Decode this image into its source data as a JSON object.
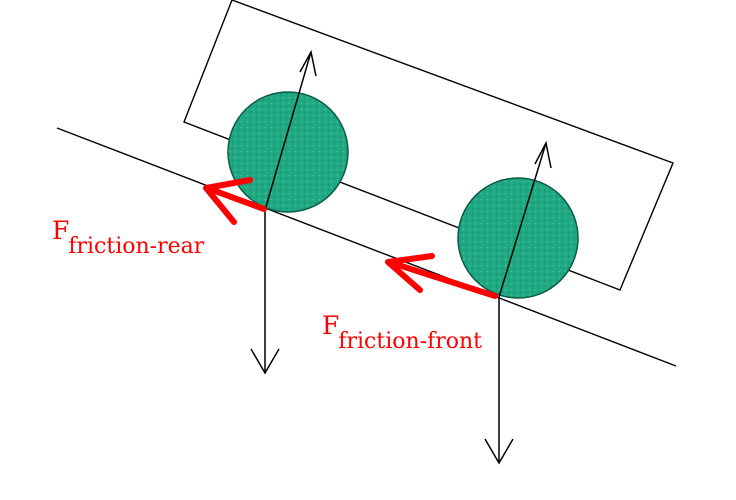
{
  "labels": {
    "rear": {
      "symbol": "F",
      "subscript": "friction-rear"
    },
    "front": {
      "symbol": "F",
      "subscript": "friction-front"
    }
  },
  "colors": {
    "wheel_fill": "#20a882",
    "wheel_stroke": "#0b5c44",
    "friction_arrow": "#ff0000",
    "lines": "#000000",
    "background": "#ffffff"
  }
}
